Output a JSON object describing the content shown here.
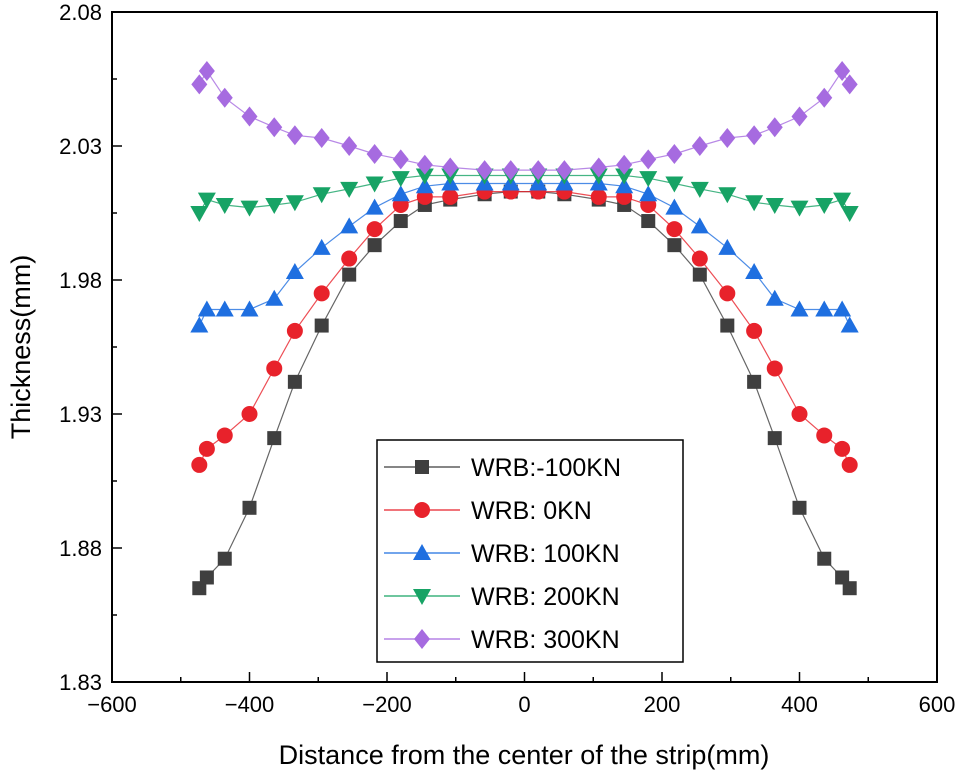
{
  "chart_data": {
    "type": "line",
    "title": "",
    "xlabel": "Distance from the center of the strip(mm)",
    "ylabel": "Thickness(mm)",
    "xlim": [
      -600,
      600
    ],
    "ylim": [
      1.83,
      2.08
    ],
    "xticks": [
      -600,
      -400,
      -200,
      0,
      200,
      400,
      600
    ],
    "xtick_labels": [
      "−600",
      "−400",
      "−200",
      "0",
      "200",
      "400",
      "600"
    ],
    "yticks": [
      1.83,
      1.88,
      1.93,
      1.98,
      2.03,
      2.08
    ],
    "ytick_labels": [
      "1.83",
      "1.88",
      "1.93",
      "1.98",
      "2.03",
      "2.08"
    ],
    "x": [
      -473,
      -462,
      -436,
      -400,
      -364,
      -334,
      -295,
      -255,
      -218,
      -180,
      -145,
      -108,
      -58,
      -20,
      20,
      58,
      108,
      145,
      180,
      218,
      255,
      295,
      334,
      364,
      400,
      436,
      462,
      473
    ],
    "legend_position": "bottom-center",
    "series": [
      {
        "name": "WRB:-100KN",
        "color": "#3f3f3f",
        "marker": "square",
        "values": [
          1.865,
          1.869,
          1.876,
          1.895,
          1.921,
          1.942,
          1.963,
          1.982,
          1.993,
          2.002,
          2.008,
          2.01,
          2.012,
          2.013,
          2.013,
          2.012,
          2.01,
          2.008,
          2.002,
          1.993,
          1.982,
          1.963,
          1.942,
          1.921,
          1.895,
          1.876,
          1.869,
          1.865
        ]
      },
      {
        "name": "WRB: 0KN",
        "color": "#e8222b",
        "marker": "circle",
        "values": [
          1.911,
          1.917,
          1.922,
          1.93,
          1.947,
          1.961,
          1.975,
          1.988,
          1.999,
          2.008,
          2.011,
          2.011,
          2.013,
          2.013,
          2.013,
          2.013,
          2.011,
          2.011,
          2.008,
          1.999,
          1.988,
          1.975,
          1.961,
          1.947,
          1.93,
          1.922,
          1.917,
          1.911
        ]
      },
      {
        "name": "WRB: 100KN",
        "color": "#1f6fe0",
        "marker": "triangle-up",
        "values": [
          1.963,
          1.969,
          1.969,
          1.969,
          1.973,
          1.983,
          1.992,
          2.0,
          2.007,
          2.012,
          2.015,
          2.016,
          2.016,
          2.016,
          2.016,
          2.016,
          2.016,
          2.015,
          2.012,
          2.007,
          2.0,
          1.992,
          1.983,
          1.973,
          1.969,
          1.969,
          1.969,
          1.963
        ]
      },
      {
        "name": "WRB: 200KN",
        "color": "#17a365",
        "marker": "triangle-down",
        "values": [
          2.005,
          2.01,
          2.008,
          2.007,
          2.008,
          2.009,
          2.012,
          2.014,
          2.016,
          2.018,
          2.019,
          2.019,
          2.019,
          2.019,
          2.019,
          2.019,
          2.019,
          2.019,
          2.018,
          2.016,
          2.014,
          2.012,
          2.009,
          2.008,
          2.007,
          2.008,
          2.01,
          2.005
        ]
      },
      {
        "name": "WRB: 300KN",
        "color": "#a66be0",
        "marker": "diamond",
        "values": [
          2.053,
          2.058,
          2.048,
          2.041,
          2.037,
          2.034,
          2.033,
          2.03,
          2.027,
          2.025,
          2.023,
          2.022,
          2.021,
          2.021,
          2.021,
          2.021,
          2.022,
          2.023,
          2.025,
          2.027,
          2.03,
          2.033,
          2.034,
          2.037,
          2.041,
          2.048,
          2.058,
          2.053
        ]
      }
    ]
  }
}
